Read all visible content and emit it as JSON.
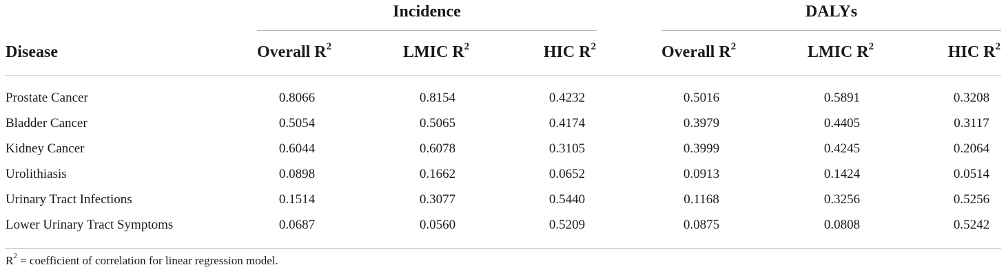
{
  "table": {
    "group_headers": {
      "incidence": "Incidence",
      "dalys": "DALYs"
    },
    "column_headers": {
      "disease": "Disease",
      "incidence_overall": "Overall R",
      "incidence_lmic": "LMIC R",
      "incidence_hic": "HIC R",
      "dalys_overall": "Overall R",
      "dalys_lmic": "LMIC R",
      "dalys_hic": "HIC R",
      "superscript": "2"
    },
    "rows": [
      {
        "disease": "Prostate Cancer",
        "inc_overall": "0.8066",
        "inc_lmic": "0.8154",
        "inc_hic": "0.4232",
        "daly_overall": "0.5016",
        "daly_lmic": "0.5891",
        "daly_hic": "0.3208"
      },
      {
        "disease": "Bladder Cancer",
        "inc_overall": "0.5054",
        "inc_lmic": "0.5065",
        "inc_hic": "0.4174",
        "daly_overall": "0.3979",
        "daly_lmic": "0.4405",
        "daly_hic": "0.3117"
      },
      {
        "disease": "Kidney Cancer",
        "inc_overall": "0.6044",
        "inc_lmic": "0.6078",
        "inc_hic": "0.3105",
        "daly_overall": "0.3999",
        "daly_lmic": "0.4245",
        "daly_hic": "0.2064"
      },
      {
        "disease": "Urolithiasis",
        "inc_overall": "0.0898",
        "inc_lmic": "0.1662",
        "inc_hic": "0.0652",
        "daly_overall": "0.0913",
        "daly_lmic": "0.1424",
        "daly_hic": "0.0514"
      },
      {
        "disease": "Urinary Tract Infections",
        "inc_overall": "0.1514",
        "inc_lmic": "0.3077",
        "inc_hic": "0.5440",
        "daly_overall": "0.1168",
        "daly_lmic": "0.3256",
        "daly_hic": "0.5256"
      },
      {
        "disease": "Lower Urinary Tract Symptoms",
        "inc_overall": "0.0687",
        "inc_lmic": "0.0560",
        "inc_hic": "0.5209",
        "daly_overall": "0.0875",
        "daly_lmic": "0.0808",
        "daly_hic": "0.5242"
      }
    ]
  },
  "footnote": {
    "symbol": "R",
    "superscript": "2",
    "text": " = coefficient of correlation for linear regression model."
  }
}
